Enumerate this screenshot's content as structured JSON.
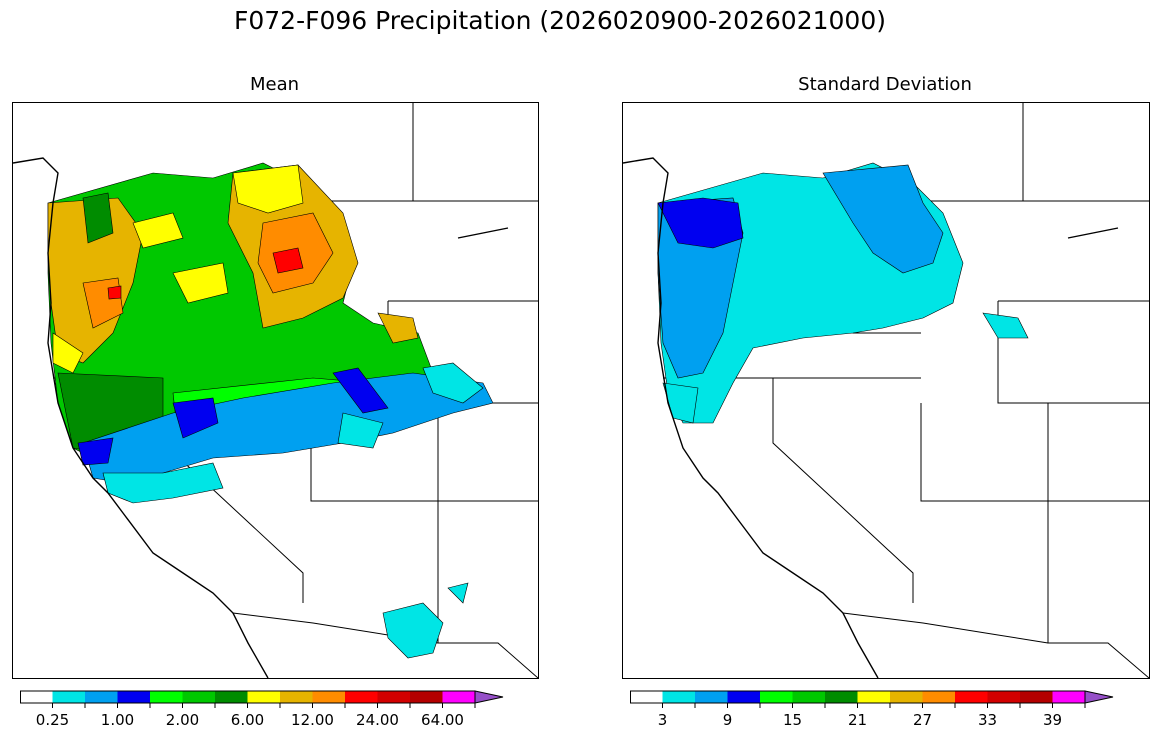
{
  "title": "F072-F096 Precipitation (2026020900-2026021000)",
  "colors": {
    "scale": [
      "#ffffff",
      "#00e5e5",
      "#00a0f0",
      "#0000f0",
      "#00ff00",
      "#00c800",
      "#008c00",
      "#ffff00",
      "#e6b400",
      "#ff8c00",
      "#ff0000",
      "#d20000",
      "#b40000",
      "#ff00ff",
      "#9650c8"
    ],
    "land": "#ffffff",
    "outline": "#000000"
  },
  "panels": [
    {
      "id": "mean",
      "title": "Mean",
      "colorbar": {
        "levels": 15,
        "labels": [
          {
            "text": "0.25",
            "boundary": 1
          },
          {
            "text": "1.00",
            "boundary": 3
          },
          {
            "text": "2.00",
            "boundary": 5
          },
          {
            "text": "6.00",
            "boundary": 7
          },
          {
            "text": "12.00",
            "boundary": 9
          },
          {
            "text": "24.00",
            "boundary": 11
          },
          {
            "text": "64.00",
            "boundary": 13
          }
        ]
      }
    },
    {
      "id": "sd",
      "title": "Standard Deviation",
      "colorbar": {
        "levels": 15,
        "labels": [
          {
            "text": "3",
            "boundary": 1
          },
          {
            "text": "9",
            "boundary": 3
          },
          {
            "text": "15",
            "boundary": 5
          },
          {
            "text": "21",
            "boundary": 7
          },
          {
            "text": "27",
            "boundary": 9
          },
          {
            "text": "33",
            "boundary": 11
          },
          {
            "text": "39",
            "boundary": 13
          }
        ]
      }
    }
  ]
}
